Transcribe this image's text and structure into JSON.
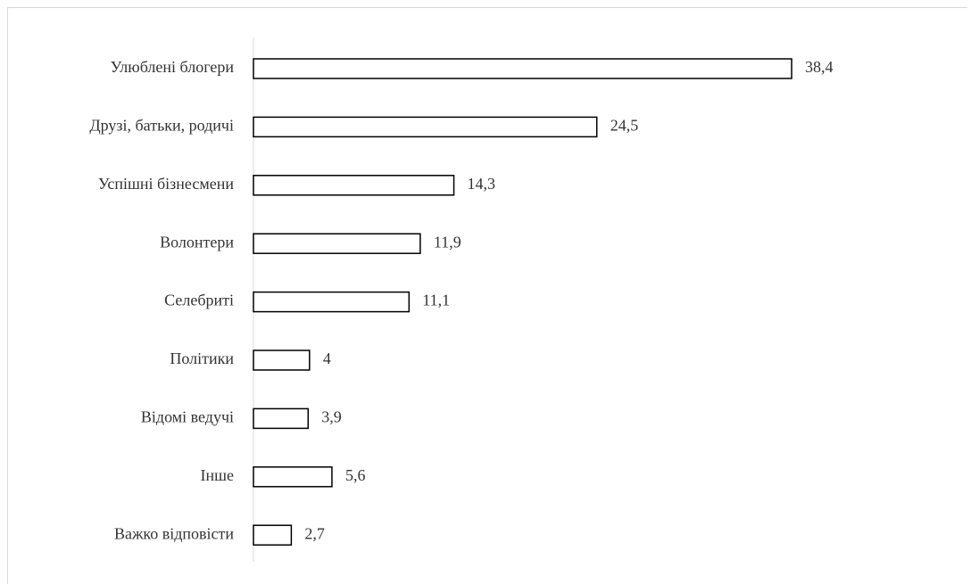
{
  "chart_data": {
    "type": "bar",
    "orientation": "horizontal",
    "title": "",
    "xlabel": "",
    "ylabel": "",
    "categories": [
      "Улюблені блогери",
      "Друзі, батьки, родичі",
      "Успішні бізнесмени",
      "Волонтери",
      "Селебриті",
      "Політики",
      "Відомі ведучі",
      "Інше",
      "Важко відповісти"
    ],
    "values": [
      38.4,
      24.5,
      14.3,
      11.9,
      11.1,
      4,
      3.9,
      5.6,
      2.7
    ],
    "value_labels": [
      "38,4",
      "24,5",
      "14,3",
      "11,9",
      "11,1",
      "4",
      "3,9",
      "5,6",
      "2,7"
    ],
    "xlim": [
      0,
      40
    ],
    "grid": false,
    "legend": "none",
    "colors": {
      "bar_fill": "#ffffff",
      "bar_stroke": "#000000",
      "text": "#333333",
      "axis": "#d9d9d9"
    }
  }
}
